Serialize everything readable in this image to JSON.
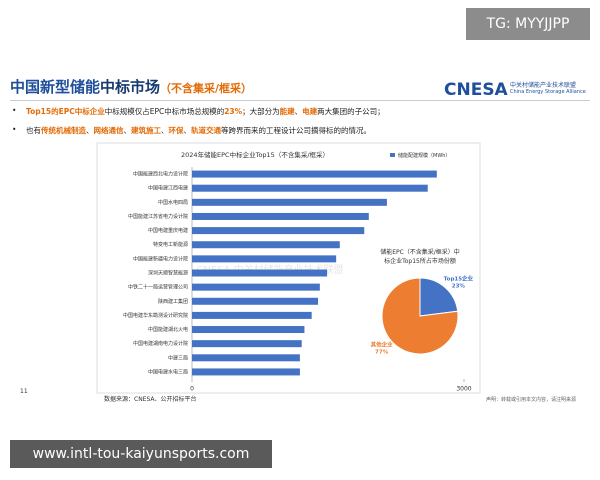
{
  "watermark_top": "TG: MYYJJPP",
  "watermark_bottom": "www.intl-tou-kaiyunsports.com",
  "header": {
    "title_parts": [
      "中国新型储能",
      "中标市场",
      "（不含集采/框采）"
    ],
    "logo": "CNESA",
    "logo_cn": "中关村储能产业技术联盟",
    "logo_en": "China Energy Storage Alliance"
  },
  "bullets": [
    [
      {
        "text": "Top15的EPC中标企业",
        "em": true
      },
      {
        "text": "中标规模仅占EPC中标市场总规模的",
        "em": false
      },
      {
        "text": "23%",
        "em": true
      },
      {
        "text": "；大部分为",
        "em": false
      },
      {
        "text": "能建",
        "em": true
      },
      {
        "text": "、",
        "em": false
      },
      {
        "text": "电建",
        "em": true
      },
      {
        "text": "两大集团的子公司；",
        "em": false
      }
    ],
    [
      {
        "text": "也有",
        "em": false
      },
      {
        "text": "传统机械制造",
        "em": true
      },
      {
        "text": "、",
        "em": false
      },
      {
        "text": "网络通信",
        "em": true
      },
      {
        "text": "、",
        "em": false
      },
      {
        "text": "建筑施工",
        "em": true
      },
      {
        "text": "、",
        "em": false
      },
      {
        "text": "环保",
        "em": true
      },
      {
        "text": "、",
        "em": false
      },
      {
        "text": "轨道交通",
        "em": true
      },
      {
        "text": "等跨界而来的工程设计公司摘得标的的情况。",
        "em": false
      }
    ]
  ],
  "footer": {
    "page": "11",
    "source": "数据来源：CNESA、公开招标平台",
    "notice": "声明：转载或引用本文内容，请注明来源"
  },
  "chart_data": [
    {
      "type": "hbar",
      "title": "2024年储能EPC中标企业Top15（不含集采/框采）",
      "watermark": "CNESA 中关村储能产业技术联盟",
      "categories": [
        "中国能建西北电力设计院",
        "中国电建江西电建",
        "中国水电四局",
        "中国能建江苏省电力设计院",
        "中国电建重庆电建",
        "特变电工新能源",
        "中国能建新疆电力设计院",
        "深圳天顺智慧能源",
        "中铁二十一局运营管理公司",
        "陕西建工集团",
        "中国电建华东勘测设计研究院",
        "中国能建湖北火电",
        "中国电建湖南电力设计院",
        "中建三局",
        "中国电建水电三局"
      ],
      "series": [
        {
          "name": "储能配建规模（MWh）",
          "color": "#4472c4",
          "values": [
            2700,
            2600,
            2150,
            1950,
            1900,
            1630,
            1590,
            1490,
            1410,
            1390,
            1320,
            1240,
            1210,
            1190,
            1190
          ]
        }
      ],
      "xlim": [
        0,
        3000
      ],
      "xticks": [
        0,
        3000
      ],
      "legend": "top-right"
    },
    {
      "type": "pie",
      "title": "储能EPC（不含集采/框采）中标企业Top15所占市场份额",
      "categories": [
        "Top15企业",
        "其他企业"
      ],
      "values": [
        23,
        77
      ],
      "value_labels": [
        "23%",
        "77%"
      ],
      "colors": [
        "#4472c4",
        "#ed7d31"
      ]
    }
  ]
}
